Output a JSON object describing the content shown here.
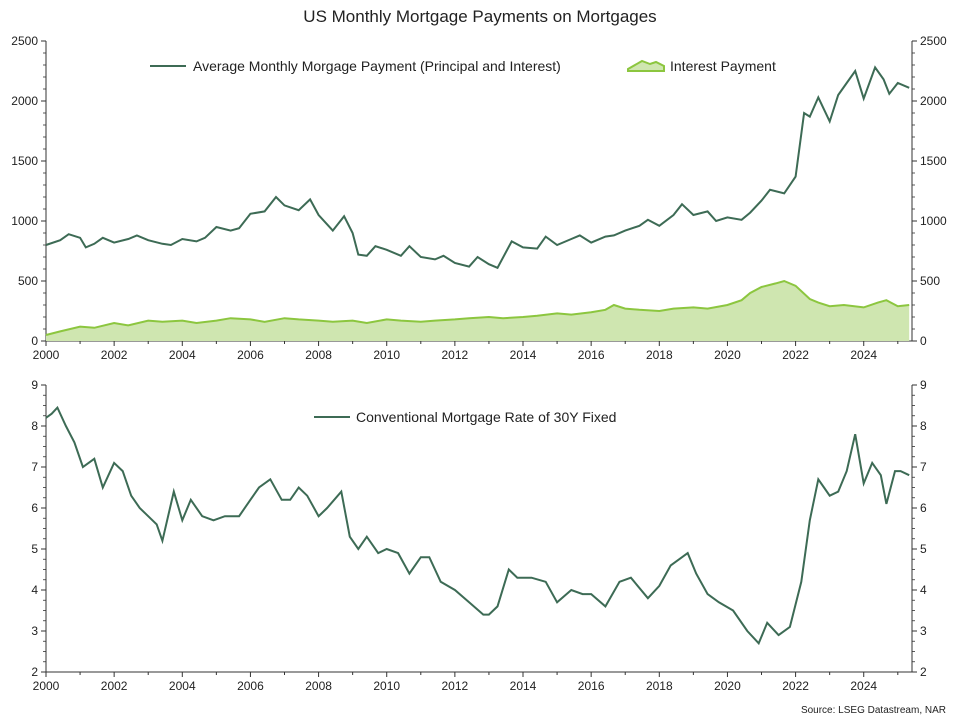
{
  "title": "US Monthly Mortgage Payments on Mortgages",
  "source": "Source: LSEG Datastream, NAR",
  "colors": {
    "payment_line": "#3d6b55",
    "interest_line": "#8cc63f",
    "interest_fill": "#cfe6b0",
    "rate_line": "#3d6b55"
  },
  "x_ticks": [
    "2000",
    "2002",
    "2004",
    "2006",
    "2008",
    "2010",
    "2012",
    "2014",
    "2016",
    "2018",
    "2020",
    "2022",
    "2024"
  ],
  "top_y_ticks": [
    "0",
    "500",
    "1000",
    "1500",
    "2000",
    "2500"
  ],
  "bottom_y_ticks": [
    "2",
    "3",
    "4",
    "5",
    "6",
    "7",
    "8",
    "9"
  ],
  "chart_data": [
    {
      "type": "line",
      "title": "US Monthly Mortgage Payments on Mortgages",
      "xlim": [
        "2000-01",
        "2025-06"
      ],
      "ylim": [
        0,
        2500
      ],
      "grid": false,
      "legend_position": "top",
      "series": [
        {
          "name": "Average Monthly Morgage Payment (Principal and Interest)",
          "style": "line",
          "points": [
            [
              "2000-01",
              800
            ],
            [
              "2000-06",
              840
            ],
            [
              "2000-09",
              890
            ],
            [
              "2001-01",
              860
            ],
            [
              "2001-03",
              780
            ],
            [
              "2001-06",
              810
            ],
            [
              "2001-09",
              860
            ],
            [
              "2002-01",
              820
            ],
            [
              "2002-06",
              850
            ],
            [
              "2002-09",
              880
            ],
            [
              "2003-01",
              840
            ],
            [
              "2003-06",
              810
            ],
            [
              "2003-09",
              800
            ],
            [
              "2004-01",
              850
            ],
            [
              "2004-06",
              830
            ],
            [
              "2004-09",
              860
            ],
            [
              "2005-01",
              950
            ],
            [
              "2005-06",
              920
            ],
            [
              "2005-09",
              940
            ],
            [
              "2006-01",
              1060
            ],
            [
              "2006-06",
              1080
            ],
            [
              "2006-10",
              1200
            ],
            [
              "2007-01",
              1130
            ],
            [
              "2007-06",
              1090
            ],
            [
              "2007-10",
              1180
            ],
            [
              "2008-01",
              1050
            ],
            [
              "2008-06",
              920
            ],
            [
              "2008-10",
              1040
            ],
            [
              "2009-01",
              900
            ],
            [
              "2009-03",
              720
            ],
            [
              "2009-06",
              710
            ],
            [
              "2009-09",
              790
            ],
            [
              "2010-01",
              760
            ],
            [
              "2010-06",
              710
            ],
            [
              "2010-09",
              790
            ],
            [
              "2011-01",
              700
            ],
            [
              "2011-06",
              680
            ],
            [
              "2011-09",
              710
            ],
            [
              "2012-01",
              650
            ],
            [
              "2012-06",
              620
            ],
            [
              "2012-09",
              700
            ],
            [
              "2013-01",
              640
            ],
            [
              "2013-04",
              610
            ],
            [
              "2013-09",
              830
            ],
            [
              "2014-01",
              780
            ],
            [
              "2014-06",
              770
            ],
            [
              "2014-09",
              870
            ],
            [
              "2015-01",
              800
            ],
            [
              "2015-06",
              850
            ],
            [
              "2015-09",
              880
            ],
            [
              "2016-01",
              820
            ],
            [
              "2016-06",
              870
            ],
            [
              "2016-09",
              880
            ],
            [
              "2017-01",
              920
            ],
            [
              "2017-06",
              960
            ],
            [
              "2017-09",
              1010
            ],
            [
              "2018-01",
              960
            ],
            [
              "2018-06",
              1050
            ],
            [
              "2018-09",
              1140
            ],
            [
              "2019-01",
              1050
            ],
            [
              "2019-06",
              1080
            ],
            [
              "2019-09",
              1000
            ],
            [
              "2020-01",
              1030
            ],
            [
              "2020-06",
              1010
            ],
            [
              "2020-09",
              1070
            ],
            [
              "2021-01",
              1170
            ],
            [
              "2021-04",
              1260
            ],
            [
              "2021-09",
              1230
            ],
            [
              "2022-01",
              1370
            ],
            [
              "2022-04",
              1900
            ],
            [
              "2022-06",
              1870
            ],
            [
              "2022-09",
              2030
            ],
            [
              "2023-01",
              1830
            ],
            [
              "2023-04",
              2050
            ],
            [
              "2023-07",
              2150
            ],
            [
              "2023-10",
              2250
            ],
            [
              "2024-01",
              2020
            ],
            [
              "2024-05",
              2280
            ],
            [
              "2024-08",
              2180
            ],
            [
              "2024-10",
              2060
            ],
            [
              "2025-01",
              2150
            ],
            [
              "2025-05",
              2110
            ]
          ]
        },
        {
          "name": "Interest Payment",
          "style": "area",
          "points": [
            [
              "2000-01",
              50
            ],
            [
              "2000-06",
              80
            ],
            [
              "2001-01",
              120
            ],
            [
              "2001-06",
              110
            ],
            [
              "2002-01",
              150
            ],
            [
              "2002-06",
              130
            ],
            [
              "2003-01",
              170
            ],
            [
              "2003-06",
              160
            ],
            [
              "2004-01",
              170
            ],
            [
              "2004-06",
              150
            ],
            [
              "2005-01",
              170
            ],
            [
              "2005-06",
              190
            ],
            [
              "2006-01",
              180
            ],
            [
              "2006-06",
              160
            ],
            [
              "2007-01",
              190
            ],
            [
              "2007-06",
              180
            ],
            [
              "2008-01",
              170
            ],
            [
              "2008-06",
              160
            ],
            [
              "2009-01",
              170
            ],
            [
              "2009-06",
              150
            ],
            [
              "2010-01",
              180
            ],
            [
              "2010-06",
              170
            ],
            [
              "2011-01",
              160
            ],
            [
              "2011-06",
              170
            ],
            [
              "2012-01",
              180
            ],
            [
              "2012-06",
              190
            ],
            [
              "2013-01",
              200
            ],
            [
              "2013-06",
              190
            ],
            [
              "2014-01",
              200
            ],
            [
              "2014-06",
              210
            ],
            [
              "2015-01",
              230
            ],
            [
              "2015-06",
              220
            ],
            [
              "2016-01",
              240
            ],
            [
              "2016-06",
              260
            ],
            [
              "2016-09",
              300
            ],
            [
              "2017-01",
              270
            ],
            [
              "2017-06",
              260
            ],
            [
              "2018-01",
              250
            ],
            [
              "2018-06",
              270
            ],
            [
              "2019-01",
              280
            ],
            [
              "2019-06",
              270
            ],
            [
              "2020-01",
              300
            ],
            [
              "2020-06",
              340
            ],
            [
              "2020-09",
              400
            ],
            [
              "2021-01",
              450
            ],
            [
              "2021-06",
              480
            ],
            [
              "2021-09",
              500
            ],
            [
              "2022-01",
              460
            ],
            [
              "2022-06",
              350
            ],
            [
              "2022-09",
              320
            ],
            [
              "2023-01",
              290
            ],
            [
              "2023-06",
              300
            ],
            [
              "2024-01",
              280
            ],
            [
              "2024-06",
              320
            ],
            [
              "2024-09",
              340
            ],
            [
              "2025-01",
              290
            ],
            [
              "2025-05",
              300
            ]
          ]
        }
      ]
    },
    {
      "type": "line",
      "xlim": [
        "2000-01",
        "2025-06"
      ],
      "ylim": [
        2,
        9
      ],
      "grid": false,
      "legend_position": "top",
      "series": [
        {
          "name": "Conventional Mortgage Rate of 30Y Fixed",
          "points": [
            [
              "2000-01",
              8.2
            ],
            [
              "2000-03",
              8.3
            ],
            [
              "2000-05",
              8.45
            ],
            [
              "2000-08",
              8.0
            ],
            [
              "2000-11",
              7.6
            ],
            [
              "2001-02",
              7.0
            ],
            [
              "2001-06",
              7.2
            ],
            [
              "2001-09",
              6.5
            ],
            [
              "2002-01",
              7.1
            ],
            [
              "2002-04",
              6.9
            ],
            [
              "2002-07",
              6.3
            ],
            [
              "2002-10",
              6.0
            ],
            [
              "2003-01",
              5.8
            ],
            [
              "2003-04",
              5.6
            ],
            [
              "2003-06",
              5.2
            ],
            [
              "2003-10",
              6.4
            ],
            [
              "2004-01",
              5.7
            ],
            [
              "2004-04",
              6.2
            ],
            [
              "2004-08",
              5.8
            ],
            [
              "2004-12",
              5.7
            ],
            [
              "2005-04",
              5.8
            ],
            [
              "2005-09",
              5.8
            ],
            [
              "2006-01",
              6.2
            ],
            [
              "2006-04",
              6.5
            ],
            [
              "2006-08",
              6.7
            ],
            [
              "2006-12",
              6.2
            ],
            [
              "2007-03",
              6.2
            ],
            [
              "2007-06",
              6.5
            ],
            [
              "2007-09",
              6.3
            ],
            [
              "2008-01",
              5.8
            ],
            [
              "2008-04",
              6.0
            ],
            [
              "2008-09",
              6.4
            ],
            [
              "2008-12",
              5.3
            ],
            [
              "2009-03",
              5.0
            ],
            [
              "2009-06",
              5.3
            ],
            [
              "2009-10",
              4.9
            ],
            [
              "2010-01",
              5.0
            ],
            [
              "2010-05",
              4.9
            ],
            [
              "2010-09",
              4.4
            ],
            [
              "2011-01",
              4.8
            ],
            [
              "2011-04",
              4.8
            ],
            [
              "2011-08",
              4.2
            ],
            [
              "2012-01",
              4.0
            ],
            [
              "2012-06",
              3.7
            ],
            [
              "2012-11",
              3.4
            ],
            [
              "2013-01",
              3.4
            ],
            [
              "2013-04",
              3.6
            ],
            [
              "2013-08",
              4.5
            ],
            [
              "2013-11",
              4.3
            ],
            [
              "2014-04",
              4.3
            ],
            [
              "2014-09",
              4.2
            ],
            [
              "2015-01",
              3.7
            ],
            [
              "2015-06",
              4.0
            ],
            [
              "2015-10",
              3.9
            ],
            [
              "2016-01",
              3.9
            ],
            [
              "2016-06",
              3.6
            ],
            [
              "2016-11",
              4.2
            ],
            [
              "2017-03",
              4.3
            ],
            [
              "2017-09",
              3.8
            ],
            [
              "2018-01",
              4.1
            ],
            [
              "2018-05",
              4.6
            ],
            [
              "2018-11",
              4.9
            ],
            [
              "2019-02",
              4.4
            ],
            [
              "2019-06",
              3.9
            ],
            [
              "2019-10",
              3.7
            ],
            [
              "2020-03",
              3.5
            ],
            [
              "2020-08",
              3.0
            ],
            [
              "2020-12",
              2.7
            ],
            [
              "2021-03",
              3.2
            ],
            [
              "2021-07",
              2.9
            ],
            [
              "2021-11",
              3.1
            ],
            [
              "2022-03",
              4.2
            ],
            [
              "2022-06",
              5.7
            ],
            [
              "2022-09",
              6.7
            ],
            [
              "2022-11",
              6.5
            ],
            [
              "2023-01",
              6.3
            ],
            [
              "2023-04",
              6.4
            ],
            [
              "2023-07",
              6.9
            ],
            [
              "2023-10",
              7.8
            ],
            [
              "2024-01",
              6.6
            ],
            [
              "2024-04",
              7.1
            ],
            [
              "2024-07",
              6.8
            ],
            [
              "2024-09",
              6.1
            ],
            [
              "2024-12",
              6.9
            ],
            [
              "2025-02",
              6.9
            ],
            [
              "2025-05",
              6.8
            ]
          ]
        }
      ]
    }
  ]
}
